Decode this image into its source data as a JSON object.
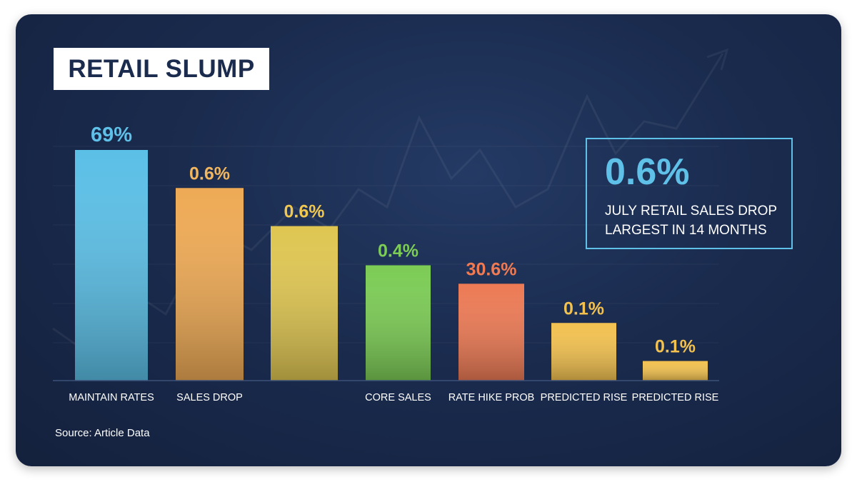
{
  "title": "RETAIL SLUMP",
  "source": "Source: Article Data",
  "callout": {
    "value": "0.6%",
    "line1": "JULY RETAIL SALES DROP",
    "line2": "LARGEST IN 14 MONTHS",
    "border_color": "#5fc0e8"
  },
  "colors": {
    "background": "#1a2b4e",
    "title_box": "#ffffff",
    "accent": "#5fc0e8"
  },
  "chart_data": {
    "type": "bar",
    "title": "RETAIL SLUMP",
    "categories": [
      "MAINTAIN RATES",
      "SALES DROP",
      "",
      "CORE SALES",
      "RATE HIKE PROB",
      "PREDICTED RISE",
      "PREDICTED RISE"
    ],
    "data_labels": [
      "69%",
      "0.6%",
      "0.6%",
      "0.4%",
      "30.6%",
      "0.1%",
      "0.1%"
    ],
    "relative_bar_heights": [
      1.0,
      0.835,
      0.67,
      0.5,
      0.42,
      0.25,
      0.085
    ],
    "colors": [
      "#5bbfe6",
      "#eeaa55",
      "#dfc652",
      "#7ccc55",
      "#ec7a55",
      "#f2c150",
      "#f2c150"
    ],
    "label_colors": [
      "#5fc0e8",
      "#f2b75e",
      "#f0c850",
      "#7ccc55",
      "#f07a52",
      "#f2c150",
      "#f2c150"
    ],
    "grid": true,
    "legend": "none"
  }
}
